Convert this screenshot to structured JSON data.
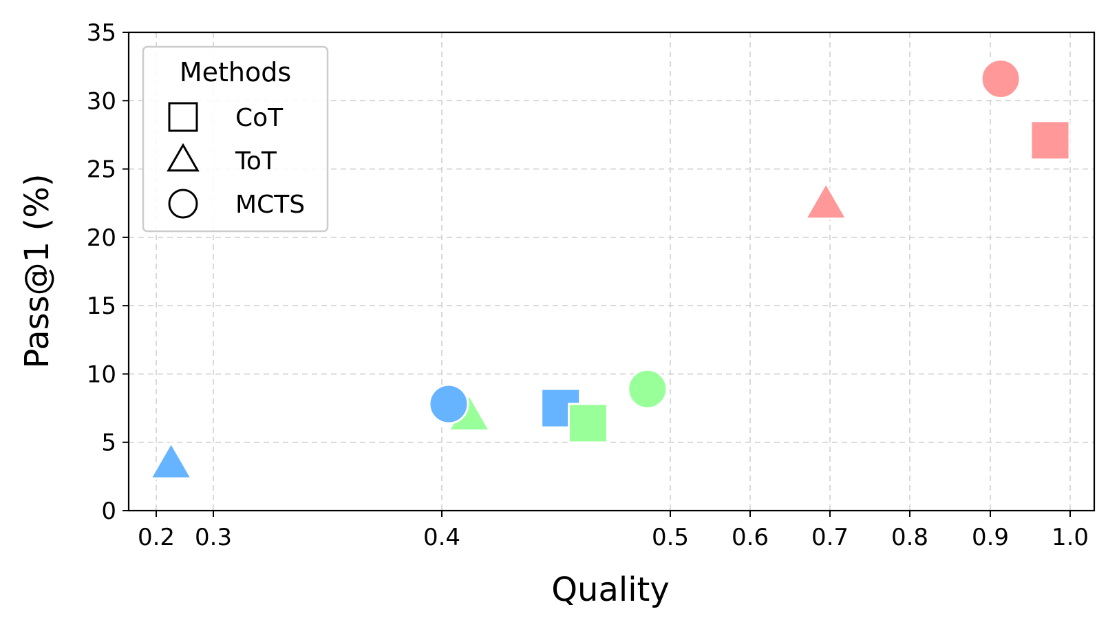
{
  "chart_data": {
    "type": "scatter",
    "title": "",
    "xlabel": "Quality",
    "ylabel": "Pass@1 (%)",
    "x_ticks": [
      0.2,
      0.3,
      0.4,
      0.5,
      0.6,
      0.7,
      0.8,
      0.9,
      1.0
    ],
    "x_tick_labels": [
      "0.2",
      "0.3",
      "0.4",
      "0.5",
      "0.6",
      "0.7",
      "0.8",
      "0.9",
      "1.0"
    ],
    "y_ticks": [
      0,
      5,
      10,
      15,
      20,
      25,
      30,
      35
    ],
    "y_tick_labels": [
      "0",
      "5",
      "10",
      "15",
      "20",
      "25",
      "30",
      "35"
    ],
    "ylim": [
      0,
      35
    ],
    "x_scale": "non-uniform (0.2–0.5 wide-spaced, 0.5–1.0 evenly spaced)",
    "grid": true,
    "legend": {
      "title": "Methods",
      "position": "top-left",
      "entries": [
        {
          "label": "CoT",
          "marker": "square"
        },
        {
          "label": "ToT",
          "marker": "triangle"
        },
        {
          "label": "MCTS",
          "marker": "circle"
        }
      ]
    },
    "colors": {
      "red": "#ff9999",
      "blue": "#66b3ff",
      "green": "#99ff99"
    },
    "points": [
      {
        "x": 0.913,
        "y": 31.6,
        "method": "MCTS",
        "marker": "circle",
        "color": "#ff9999"
      },
      {
        "x": 0.975,
        "y": 27.1,
        "method": "CoT",
        "marker": "square",
        "color": "#ff9999"
      },
      {
        "x": 0.695,
        "y": 22.4,
        "method": "ToT",
        "marker": "triangle",
        "color": "#ff9999"
      },
      {
        "x": 0.226,
        "y": 3.4,
        "method": "ToT",
        "marker": "triangle",
        "color": "#66b3ff"
      },
      {
        "x": 0.412,
        "y": 6.9,
        "method": "ToT",
        "marker": "triangle",
        "color": "#99ff99"
      },
      {
        "x": 0.403,
        "y": 7.8,
        "method": "MCTS",
        "marker": "circle",
        "color": "#66b3ff"
      },
      {
        "x": 0.452,
        "y": 7.5,
        "method": "CoT",
        "marker": "square",
        "color": "#66b3ff"
      },
      {
        "x": 0.464,
        "y": 6.4,
        "method": "CoT",
        "marker": "square",
        "color": "#99ff99"
      },
      {
        "x": 0.49,
        "y": 8.9,
        "method": "MCTS",
        "marker": "circle",
        "color": "#99ff99"
      }
    ]
  }
}
